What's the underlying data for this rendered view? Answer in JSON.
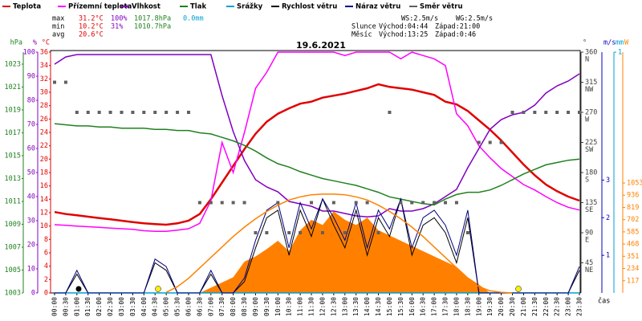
{
  "chart_data": {
    "type": "line",
    "title": "19.6.2021",
    "stats": [
      [
        "max",
        "31.2°C",
        "100%",
        "1017.8hPa",
        "0.0mm"
      ],
      [
        "min",
        "10.2°C",
        "31%",
        "1010.7hPa"
      ],
      [
        "avg",
        "20.6°C"
      ]
    ],
    "wind_info": [
      "WS:2.5m/s",
      "WG:2.5m/s"
    ],
    "sun": [
      "Slunce",
      "Východ:04:44",
      "Západ:21:00"
    ],
    "moon": [
      "Měsíc",
      "Východ:13:25",
      "Západ:0:46"
    ],
    "xlabel": "čas",
    "categories": [
      "00:00",
      "00:30",
      "01:00",
      "01:30",
      "02:00",
      "02:30",
      "03:00",
      "03:30",
      "04:00",
      "04:30",
      "05:00",
      "05:30",
      "06:00",
      "06:30",
      "07:00",
      "07:30",
      "08:00",
      "08:30",
      "09:00",
      "09:30",
      "10:00",
      "10:30",
      "11:00",
      "11:30",
      "12:00",
      "12:30",
      "13:00",
      "13:30",
      "14:00",
      "14:30",
      "15:00",
      "15:30",
      "16:00",
      "16:30",
      "17:00",
      "17:30",
      "18:00",
      "18:30",
      "19:00",
      "19:30",
      "20:00",
      "20:30",
      "21:00",
      "21:30",
      "22:00",
      "22:30",
      "23:00",
      "23:30"
    ],
    "axes": {
      "hpa": {
        "unit": "hPa",
        "color": "#208020",
        "lim": [
          1003,
          1024.05
        ],
        "ticks": [
          1003,
          1005,
          1007,
          1009,
          1011,
          1013,
          1015,
          1017,
          1019,
          1021,
          1023
        ]
      },
      "pct": {
        "unit": "%",
        "color": "#8000c0",
        "lim": [
          0,
          100
        ],
        "ticks": [
          0,
          10,
          20,
          30,
          40,
          50,
          60,
          70,
          80,
          90,
          100
        ]
      },
      "c": {
        "unit": "°C",
        "color": "#e00000",
        "lim": [
          0,
          36
        ],
        "ticks": [
          0,
          2,
          4,
          6,
          8,
          10,
          12,
          14,
          16,
          18,
          20,
          22,
          24,
          26,
          28,
          30,
          32,
          34,
          36
        ]
      },
      "dir": {
        "unit": "°",
        "color": "#404040",
        "lim": [
          0,
          360
        ],
        "ticks": [
          45,
          90,
          135,
          180,
          225,
          270,
          315,
          360
        ],
        "names": [
          "NE",
          "E",
          "SE",
          "S",
          "SW",
          "W",
          "NW",
          "N"
        ]
      },
      "ms": {
        "unit": "m/s",
        "color": "#0000c0",
        "lim": [
          0,
          6.4
        ],
        "ticks": [
          1,
          2,
          3
        ]
      },
      "mm": {
        "unit": "mm",
        "color": "#00a0d0",
        "lim": [
          0,
          1
        ],
        "ticks": [
          1
        ]
      },
      "w": {
        "unit": "W",
        "color": "#ff8000",
        "lim": [
          0,
          2306
        ],
        "ticks": [
          117,
          234,
          351,
          468,
          585,
          702,
          819,
          936,
          1053
        ]
      }
    },
    "series": [
      {
        "name": "Teplota",
        "color": "#e00000",
        "axis": "c",
        "values": [
          12.1,
          11.8,
          11.6,
          11.4,
          11.2,
          11.0,
          10.8,
          10.6,
          10.4,
          10.3,
          10.2,
          10.4,
          10.8,
          11.8,
          14.0,
          16.5,
          19.0,
          21.5,
          23.8,
          25.6,
          26.8,
          27.6,
          28.3,
          28.6,
          29.2,
          29.5,
          29.8,
          30.2,
          30.6,
          31.2,
          30.8,
          30.6,
          30.4,
          30.0,
          29.6,
          28.6,
          28.2,
          27.2,
          25.8,
          24.4,
          22.8,
          21.0,
          19.2,
          17.6,
          16.2,
          15.2,
          14.4,
          13.8
        ]
      },
      {
        "name": "Přízemní teplota",
        "color": "#ff00ff",
        "axis": "c",
        "values": [
          10.2,
          10.1,
          10.0,
          9.9,
          9.8,
          9.7,
          9.6,
          9.5,
          9.3,
          9.2,
          9.2,
          9.4,
          9.6,
          10.4,
          13.8,
          22.5,
          18.0,
          24.0,
          30.6,
          33.0,
          36.0,
          36.0,
          36.0,
          36.0,
          36.0,
          36.0,
          35.5,
          36.0,
          36.0,
          36.0,
          36.0,
          35.0,
          36.0,
          35.5,
          35.0,
          34.0,
          26.8,
          25.0,
          22.0,
          20.2,
          18.6,
          17.4,
          16.2,
          15.4,
          14.4,
          13.5,
          12.8,
          12.4
        ]
      },
      {
        "name": "Vlhkost",
        "color": "#8000c0",
        "axis": "pct",
        "values": [
          95,
          98,
          99,
          99,
          99,
          99,
          99,
          99,
          99,
          99,
          99,
          99,
          99,
          99,
          99,
          82,
          67,
          55,
          47,
          44,
          42,
          38,
          37,
          36,
          34,
          34,
          33,
          32,
          31.6,
          32,
          35,
          34,
          34,
          35,
          37,
          40,
          43,
          52,
          60,
          68,
          72,
          74,
          75,
          78,
          83,
          86,
          88,
          91
        ]
      },
      {
        "name": "Tlak",
        "color": "#208020",
        "axis": "hpa",
        "values": [
          1017.8,
          1017.7,
          1017.6,
          1017.6,
          1017.5,
          1017.5,
          1017.4,
          1017.4,
          1017.4,
          1017.3,
          1017.3,
          1017.2,
          1017.2,
          1017.0,
          1016.9,
          1016.6,
          1016.3,
          1015.9,
          1015.4,
          1014.8,
          1014.3,
          1014.0,
          1013.6,
          1013.3,
          1013.0,
          1012.8,
          1012.6,
          1012.4,
          1012.1,
          1011.8,
          1011.4,
          1011.2,
          1011.0,
          1010.8,
          1010.7,
          1011.2,
          1011.6,
          1011.8,
          1011.8,
          1012.0,
          1012.4,
          1012.9,
          1013.4,
          1013.8,
          1014.2,
          1014.4,
          1014.6,
          1014.7
        ]
      },
      {
        "name": "Srážky",
        "color": "#00a0d0",
        "axis": "mm",
        "values": [
          0,
          0,
          0,
          0,
          0,
          0,
          0,
          0,
          0,
          0,
          0,
          0,
          0,
          0,
          0,
          0,
          0,
          0,
          0,
          0,
          0,
          0,
          0,
          0,
          0,
          0,
          0,
          0,
          0,
          0,
          0,
          0,
          0,
          0,
          0,
          0,
          0,
          0,
          0,
          0,
          0,
          0,
          0,
          0,
          0,
          0,
          0,
          0
        ]
      },
      {
        "name": "Rychlost větru",
        "color": "#000000",
        "axis": "ms",
        "values": [
          0,
          0,
          0.5,
          0,
          0,
          0,
          0,
          0,
          0,
          0.8,
          0.6,
          0,
          0,
          0,
          0.5,
          0,
          0,
          0.3,
          1.2,
          2.0,
          2.2,
          1.0,
          2.2,
          1.5,
          2.5,
          1.8,
          1.2,
          2.2,
          1.0,
          2.0,
          1.5,
          2.5,
          1.0,
          1.8,
          2.0,
          1.6,
          0.8,
          2.0,
          0,
          0,
          0,
          0,
          0,
          0,
          0,
          0,
          0,
          0.6
        ]
      },
      {
        "name": "Náraz větru",
        "color": "#000080",
        "axis": "ms",
        "values": [
          0,
          0,
          0.6,
          0,
          0,
          0,
          0,
          0,
          0,
          0.9,
          0.7,
          0,
          0,
          0,
          0.6,
          0,
          0,
          0.4,
          1.4,
          2.2,
          2.4,
          1.2,
          2.4,
          1.7,
          2.5,
          2.0,
          1.4,
          2.4,
          1.2,
          2.2,
          1.7,
          2.5,
          1.2,
          2.0,
          2.2,
          1.8,
          1.0,
          2.2,
          0,
          0,
          0,
          0,
          0,
          0,
          0,
          0,
          0,
          0.7
        ]
      },
      {
        "name": "Směr větru",
        "color": "#606060",
        "axis": "dir",
        "style": "points",
        "values": [
          315,
          315,
          270,
          270,
          270,
          270,
          270,
          270,
          270,
          270,
          270,
          270,
          270,
          135,
          135,
          135,
          135,
          135,
          90,
          90,
          135,
          90,
          90,
          135,
          90,
          135,
          90,
          135,
          135,
          90,
          270,
          135,
          135,
          135,
          135,
          135,
          135,
          90,
          225,
          225,
          225,
          270,
          270,
          270,
          270,
          270,
          270,
          270
        ]
      },
      {
        "color": "#ff8000",
        "axis": "w",
        "style": "area",
        "values": [
          0,
          0,
          0,
          0,
          0,
          0,
          0,
          0,
          0,
          0,
          0,
          0,
          0,
          0,
          50,
          100,
          150,
          300,
          350,
          420,
          500,
          400,
          600,
          700,
          650,
          780,
          700,
          650,
          720,
          600,
          550,
          500,
          450,
          400,
          350,
          300,
          250,
          150,
          80,
          0,
          0,
          0,
          0,
          0,
          0,
          0,
          0,
          0
        ]
      },
      {
        "color": "#ff8000",
        "axis": "w",
        "values": [
          null,
          null,
          null,
          null,
          null,
          null,
          null,
          null,
          null,
          null,
          5,
          60,
          140,
          240,
          340,
          440,
          540,
          630,
          710,
          780,
          840,
          890,
          920,
          940,
          946,
          946,
          940,
          920,
          890,
          840,
          780,
          710,
          630,
          540,
          440,
          340,
          240,
          140,
          60,
          20,
          5,
          0,
          null,
          null,
          null,
          null,
          null,
          null
        ]
      }
    ]
  }
}
